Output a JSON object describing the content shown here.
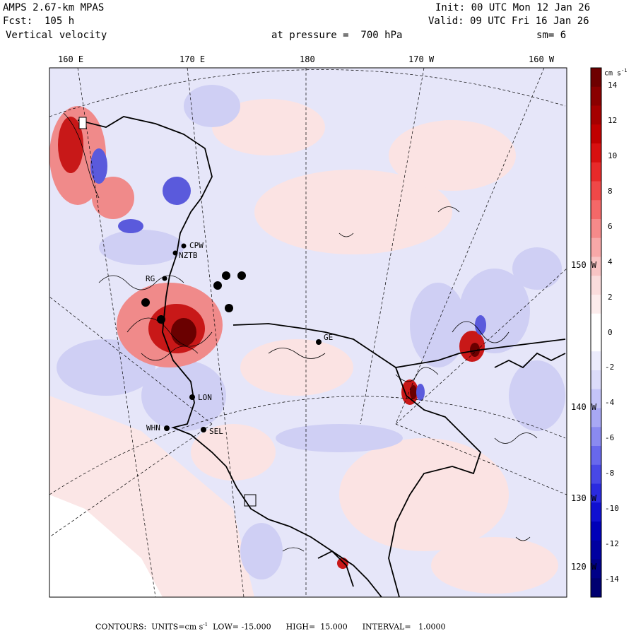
{
  "header": {
    "model": "AMPS 2.67-km MPAS",
    "forecast": "Fcst:  105 h",
    "field": "Vertical velocity",
    "init": "Init: 00 UTC Mon 12 Jan 26",
    "valid": "Valid: 09 UTC Fri 16 Jan 26",
    "pressure": "at pressure =  700 hPa",
    "smoothing": "sm= 6"
  },
  "longitude_labels": [
    "160 E",
    "170 E",
    "180",
    "170 W",
    "160 W"
  ],
  "latitude_labels": [
    "150 W",
    "140 W",
    "130 W",
    "120 W"
  ],
  "stations": [
    "CPW",
    "NZTB",
    "RG",
    "GE",
    "LON",
    "SEL",
    "WHN"
  ],
  "colorbar": {
    "units": "cm s",
    "units_exp": "-1",
    "ticks": [
      "14",
      "12",
      "10",
      "8",
      "6",
      "4",
      "2",
      "0",
      "-2",
      "-4",
      "-6",
      "-8",
      "-10",
      "-12",
      "-14"
    ],
    "colors": [
      "#6e0000",
      "#8a0000",
      "#a50000",
      "#c00000",
      "#d81010",
      "#e82a2a",
      "#f04848",
      "#f46868",
      "#f68a8a",
      "#f7a8a8",
      "#f8c4c4",
      "#fadcdc",
      "#fcecec",
      "#ffffff",
      "#ffffff",
      "#ececfc",
      "#dcdcfa",
      "#c4c4f8",
      "#a8a8f4",
      "#8a8af0",
      "#6868ec",
      "#4848e6",
      "#2a2ae0",
      "#1010d0",
      "#0000b8",
      "#0000a0",
      "#000088",
      "#000070"
    ]
  },
  "footer": {
    "contours": "CONTOURS:",
    "units_label": "UNITS=cm s",
    "units_exp": "-1",
    "low": "LOW= -15.000",
    "high": "HIGH=  15.000",
    "interval": "INTERVAL=   1.0000"
  },
  "colors": {
    "positive_light": "#f8d9d9",
    "negative_light": "#dcdcf7",
    "positive_strong": "#c41818",
    "negative_strong": "#5050d8"
  }
}
